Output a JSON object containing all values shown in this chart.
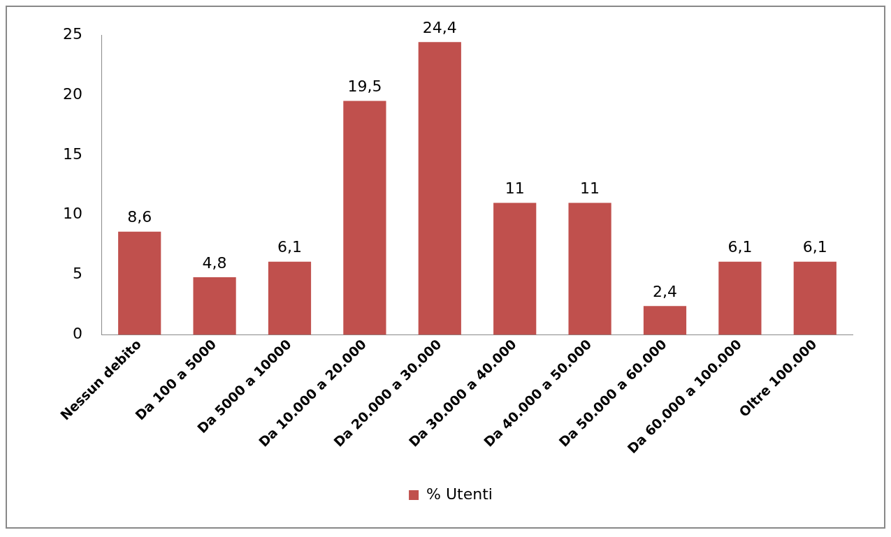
{
  "chart_data": {
    "type": "bar",
    "categories": [
      "Nessun debito",
      "Da 100 a 5000",
      "Da 5000 a 10000",
      "Da 10.000 a 20.000",
      "Da 20.000 a 30.000",
      "Da 30.000 a 40.000",
      "Da 40.000 a 50.000",
      "Da 50.000 a 60.000",
      "Da 60.000 a 100.000",
      "Oltre 100.000"
    ],
    "series": [
      {
        "name": "% Utenti",
        "color": "#c0504d",
        "values": [
          8.6,
          4.8,
          6.1,
          19.5,
          24.4,
          11,
          11,
          2.4,
          6.1,
          6.1
        ],
        "value_labels": [
          "8,6",
          "4,8",
          "6,1",
          "19,5",
          "24,4",
          "11",
          "11",
          "2,4",
          "6,1",
          "6,1"
        ]
      }
    ],
    "ylim": [
      0,
      25
    ],
    "yticks": [
      0,
      5,
      10,
      15,
      20,
      25
    ],
    "grid": false,
    "legend": "bottom"
  }
}
